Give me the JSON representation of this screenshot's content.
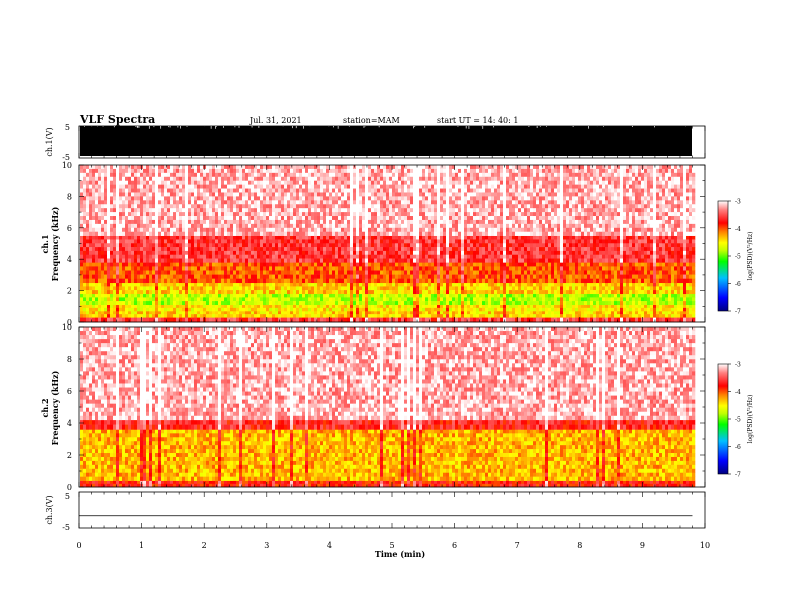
{
  "header": {
    "title": "VLF Spectra",
    "date": "Jul. 31, 2021",
    "station": "station=MAM",
    "start_ut": "start UT =  14: 40: 1"
  },
  "colors": {
    "colorbar": [
      "#000080",
      "#0000ff",
      "#00c0ff",
      "#00ff00",
      "#c0ff00",
      "#ffff00",
      "#ff8000",
      "#ff0000",
      "#ff8080",
      "#ffffff"
    ]
  },
  "chart_data": [
    {
      "type": "line",
      "name": "ch.1(V)",
      "ylabel": "ch.1(V)",
      "yticks": [
        "5",
        "-5"
      ],
      "ylim": [
        -5,
        5
      ],
      "description_kind": "saturated waveform, filled black across full range"
    },
    {
      "type": "heatmap",
      "ylabel_line1": "ch.1",
      "ylabel_line2": "Frequency (kHz)",
      "ylim": [
        0,
        10
      ],
      "yticks": [
        "0",
        "2",
        "4",
        "6",
        "8",
        "10"
      ],
      "colorbar_label": "log(PSD)(V²/Hz)",
      "colorbar_ticks": [
        "-3",
        "-4",
        "-5",
        "-6",
        "-7"
      ],
      "clim": [
        -7,
        -3
      ],
      "bands": [
        {
          "from_khz": 0,
          "to_khz": 0.3,
          "level": -3.6
        },
        {
          "from_khz": 0.3,
          "to_khz": 0.7,
          "level": -4.4
        },
        {
          "from_khz": 0.7,
          "to_khz": 1.1,
          "level": -4.5
        },
        {
          "from_khz": 1.1,
          "to_khz": 1.8,
          "level": -4.8
        },
        {
          "from_khz": 1.8,
          "to_khz": 2.5,
          "level": -4.4
        },
        {
          "from_khz": 2.5,
          "to_khz": 3.8,
          "level": -4.0
        },
        {
          "from_khz": 3.8,
          "to_khz": 5.5,
          "level": -3.6
        },
        {
          "from_khz": 5.5,
          "to_khz": 10,
          "level": -3.2
        }
      ]
    },
    {
      "type": "heatmap",
      "ylabel_line1": "ch.2",
      "ylabel_line2": "Frequency (kHz)",
      "ylim": [
        0,
        10
      ],
      "yticks": [
        "0",
        "2",
        "4",
        "6",
        "8",
        "10"
      ],
      "colorbar_label": "log(PSD)(V²/Hz)",
      "colorbar_ticks": [
        "-3",
        "-4",
        "-5",
        "-6",
        "-7"
      ],
      "clim": [
        -7,
        -3
      ],
      "bands": [
        {
          "from_khz": 0,
          "to_khz": 0.4,
          "level": -3.8
        },
        {
          "from_khz": 0.4,
          "to_khz": 3.6,
          "level": -4.3
        },
        {
          "from_khz": 3.6,
          "to_khz": 4.2,
          "level": -3.7
        },
        {
          "from_khz": 4.2,
          "to_khz": 10,
          "level": -3.2
        }
      ]
    },
    {
      "type": "line",
      "name": "ch.3(V)",
      "ylabel": "ch.3(V)",
      "yticks": [
        "5",
        "-5"
      ],
      "ylim": [
        -5,
        5
      ],
      "x": [
        0,
        9.8
      ],
      "y": [
        -1.6,
        -1.6
      ],
      "xlabel": "Time (min)",
      "xlim": [
        0,
        10
      ],
      "xticks": [
        "0",
        "1",
        "2",
        "3",
        "4",
        "5",
        "6",
        "7",
        "8",
        "9",
        "10"
      ],
      "data_end_min": 9.8
    }
  ]
}
